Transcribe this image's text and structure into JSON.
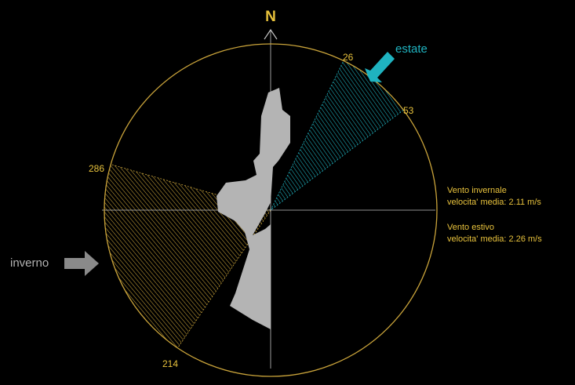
{
  "north_label": "N",
  "sectors": {
    "summer": {
      "name": "estate",
      "start_label": "26",
      "end_label": "53",
      "start_deg": 26,
      "end_deg": 53,
      "color": "#1fb3c0"
    },
    "winter": {
      "name": "inverno",
      "start_label": "214",
      "end_label": "286",
      "start_deg": 214,
      "end_deg": 286,
      "color": "#c9a33a"
    }
  },
  "info": {
    "winter_title": "Vento invernale",
    "winter_speed": "velocita' media: 2.11 m/s",
    "summer_title": "Vento estivo",
    "summer_speed": "velocita' media: 2.26 m/s"
  },
  "colors": {
    "circle": "#c9a33a",
    "label": "#e8c23c",
    "summer_arrow": "#1fb3c0",
    "winter_arrow": "#8a8a8a",
    "building": "#b4b4b4",
    "axis": "#c2c2c2"
  },
  "icons": {
    "summer_arrow": "arrow-down-left-icon",
    "winter_arrow": "arrow-right-icon",
    "north_marker": "chevron-up-icon"
  }
}
